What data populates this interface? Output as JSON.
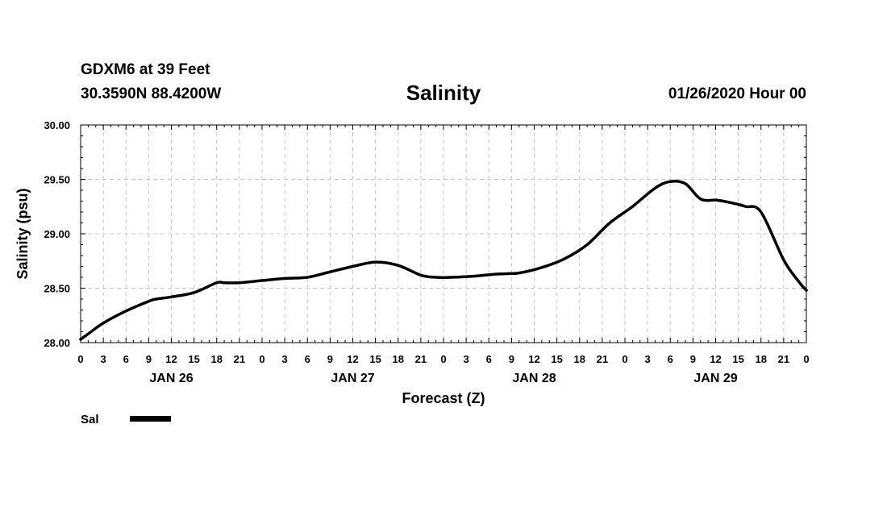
{
  "header": {
    "station": "GDXM6 at 39 Feet",
    "coords": "30.3590N 88.4200W",
    "title": "Salinity",
    "runtime": "01/26/2020 Hour 00"
  },
  "chart_data": {
    "type": "line",
    "title": "Salinity",
    "xlabel": "Forecast (Z)",
    "ylabel": "Salinity (psu)",
    "ylim": [
      28.0,
      30.0
    ],
    "yticks": [
      "28.00",
      "28.50",
      "29.00",
      "29.50",
      "30.00"
    ],
    "xlim_hours": [
      0,
      96
    ],
    "xtick_labels": [
      "0",
      "3",
      "6",
      "9",
      "12",
      "15",
      "18",
      "21",
      "0",
      "3",
      "6",
      "9",
      "12",
      "15",
      "18",
      "21",
      "0",
      "3",
      "6",
      "9",
      "12",
      "15",
      "18",
      "21",
      "0",
      "3",
      "6",
      "9",
      "12",
      "15",
      "18",
      "21",
      "0"
    ],
    "day_labels": [
      {
        "hour": 12,
        "label": "JAN 26"
      },
      {
        "hour": 36,
        "label": "JAN 27"
      },
      {
        "hour": 60,
        "label": "JAN 28"
      },
      {
        "hour": 84,
        "label": "JAN 29"
      }
    ],
    "grid": true,
    "legend": "bottom-left",
    "series": [
      {
        "name": "Sal",
        "color": "#000000",
        "x": [
          0,
          1,
          3,
          6,
          9,
          10,
          12,
          15,
          18,
          19,
          21,
          24,
          27,
          30,
          33,
          36,
          39,
          42,
          45,
          47,
          49,
          52,
          55,
          58,
          61,
          64,
          67,
          70,
          73,
          76,
          78,
          80,
          82,
          84,
          85,
          87,
          88,
          90,
          93,
          95,
          96
        ],
        "y": [
          28.03,
          28.08,
          28.18,
          28.29,
          28.38,
          28.4,
          28.42,
          28.46,
          28.55,
          28.55,
          28.55,
          28.57,
          28.59,
          28.6,
          28.65,
          28.7,
          28.74,
          28.71,
          28.62,
          28.6,
          28.6,
          28.61,
          28.63,
          28.64,
          28.69,
          28.77,
          28.9,
          29.1,
          29.25,
          29.42,
          29.48,
          29.46,
          29.32,
          29.31,
          29.3,
          29.27,
          29.25,
          29.2,
          28.76,
          28.56,
          28.48
        ]
      }
    ]
  }
}
